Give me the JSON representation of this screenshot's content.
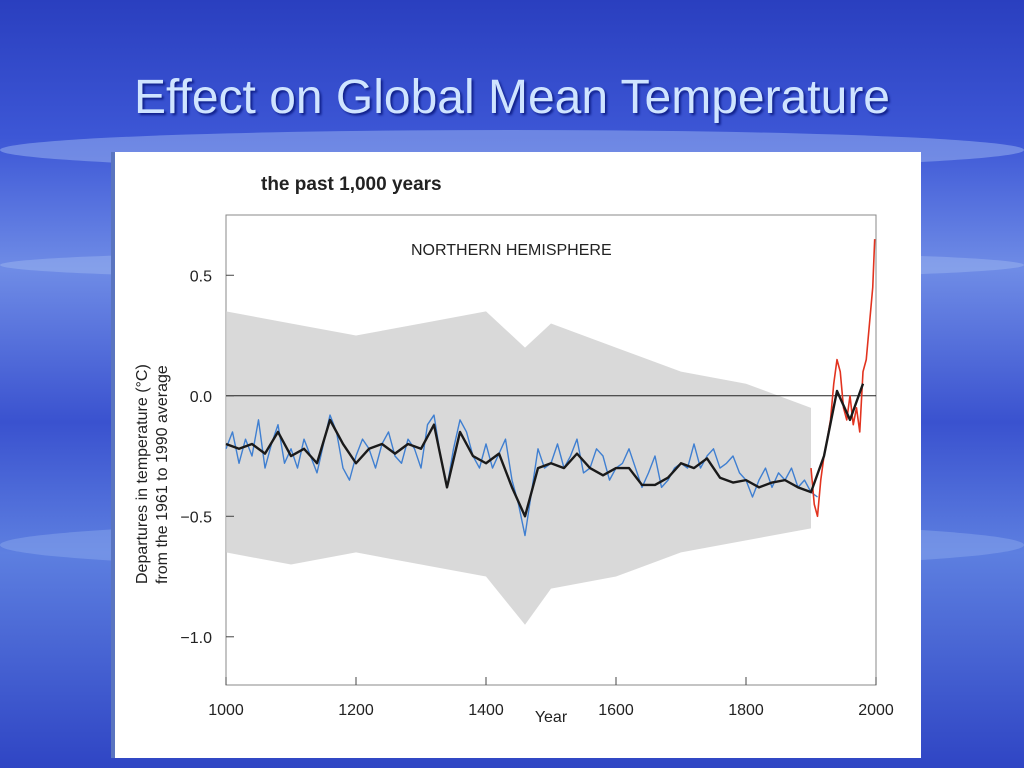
{
  "slide": {
    "title": "Effect on Global Mean Temperature"
  },
  "chart_data": {
    "type": "line",
    "title": "the past 1,000 years",
    "subtitle": "NORTHERN HEMISPHERE",
    "xlabel": "Year",
    "ylabel": "Departures in temperature (°C)",
    "ylabel_line2": "from the 1961 to 1990 average",
    "xlim": [
      1000,
      2000
    ],
    "ylim": [
      -1.2,
      0.75
    ],
    "x_ticks": [
      "1000",
      "1200",
      "1400",
      "1600",
      "1800",
      "2000"
    ],
    "y_ticks": [
      "0.5",
      "0.0",
      "−0.5",
      "−1.0"
    ],
    "reference_line_y": 0.0,
    "series": [
      {
        "color": "#3f7fd1",
        "style": "annual reconstruction",
        "x": [
          1000,
          1010,
          1020,
          1030,
          1040,
          1050,
          1060,
          1070,
          1080,
          1090,
          1100,
          1110,
          1120,
          1130,
          1140,
          1150,
          1160,
          1170,
          1180,
          1190,
          1200,
          1210,
          1220,
          1230,
          1240,
          1250,
          1260,
          1270,
          1280,
          1290,
          1300,
          1310,
          1320,
          1330,
          1340,
          1350,
          1360,
          1370,
          1380,
          1390,
          1400,
          1410,
          1420,
          1430,
          1440,
          1450,
          1460,
          1470,
          1480,
          1490,
          1500,
          1510,
          1520,
          1530,
          1540,
          1550,
          1560,
          1570,
          1580,
          1590,
          1600,
          1610,
          1620,
          1630,
          1640,
          1650,
          1660,
          1670,
          1680,
          1690,
          1700,
          1710,
          1720,
          1730,
          1740,
          1750,
          1760,
          1770,
          1780,
          1790,
          1800,
          1810,
          1820,
          1830,
          1840,
          1850,
          1860,
          1870,
          1880,
          1890,
          1900,
          1910
        ],
        "y": [
          -0.22,
          -0.15,
          -0.28,
          -0.18,
          -0.25,
          -0.1,
          -0.3,
          -0.2,
          -0.12,
          -0.28,
          -0.22,
          -0.3,
          -0.18,
          -0.25,
          -0.32,
          -0.2,
          -0.08,
          -0.15,
          -0.3,
          -0.35,
          -0.25,
          -0.18,
          -0.22,
          -0.3,
          -0.2,
          -0.15,
          -0.25,
          -0.28,
          -0.18,
          -0.22,
          -0.3,
          -0.12,
          -0.08,
          -0.25,
          -0.38,
          -0.22,
          -0.1,
          -0.15,
          -0.25,
          -0.3,
          -0.2,
          -0.3,
          -0.24,
          -0.18,
          -0.35,
          -0.45,
          -0.58,
          -0.4,
          -0.22,
          -0.3,
          -0.28,
          -0.2,
          -0.3,
          -0.25,
          -0.18,
          -0.32,
          -0.3,
          -0.22,
          -0.25,
          -0.35,
          -0.3,
          -0.28,
          -0.22,
          -0.3,
          -0.38,
          -0.32,
          -0.25,
          -0.38,
          -0.35,
          -0.3,
          -0.28,
          -0.3,
          -0.2,
          -0.3,
          -0.25,
          -0.22,
          -0.3,
          -0.28,
          -0.25,
          -0.32,
          -0.35,
          -0.42,
          -0.35,
          -0.3,
          -0.38,
          -0.32,
          -0.35,
          -0.3,
          -0.38,
          -0.35,
          -0.4,
          -0.42
        ]
      },
      {
        "color": "#e2331f",
        "style": "instrumental record",
        "x": [
          1900,
          1905,
          1910,
          1915,
          1920,
          1925,
          1930,
          1935,
          1940,
          1945,
          1950,
          1955,
          1960,
          1965,
          1970,
          1975,
          1980,
          1985,
          1990,
          1995,
          1998
        ],
        "y": [
          -0.3,
          -0.45,
          -0.5,
          -0.35,
          -0.25,
          -0.18,
          -0.1,
          0.05,
          0.15,
          0.1,
          -0.05,
          -0.1,
          0.0,
          -0.12,
          -0.05,
          -0.15,
          0.1,
          0.15,
          0.3,
          0.45,
          0.65
        ]
      },
      {
        "color": "#1a1a1a",
        "style": "smoothed 50-year mean",
        "x": [
          1000,
          1020,
          1040,
          1060,
          1080,
          1100,
          1120,
          1140,
          1160,
          1180,
          1200,
          1220,
          1240,
          1260,
          1280,
          1300,
          1320,
          1340,
          1360,
          1380,
          1400,
          1420,
          1440,
          1460,
          1480,
          1500,
          1520,
          1540,
          1560,
          1580,
          1600,
          1620,
          1640,
          1660,
          1680,
          1700,
          1720,
          1740,
          1760,
          1780,
          1800,
          1820,
          1840,
          1860,
          1880,
          1900,
          1920,
          1940,
          1960,
          1980
        ],
        "y": [
          -0.2,
          -0.22,
          -0.2,
          -0.24,
          -0.15,
          -0.25,
          -0.22,
          -0.28,
          -0.1,
          -0.2,
          -0.28,
          -0.22,
          -0.2,
          -0.24,
          -0.2,
          -0.22,
          -0.12,
          -0.38,
          -0.15,
          -0.25,
          -0.28,
          -0.24,
          -0.38,
          -0.5,
          -0.3,
          -0.28,
          -0.3,
          -0.24,
          -0.3,
          -0.33,
          -0.3,
          -0.3,
          -0.37,
          -0.37,
          -0.34,
          -0.28,
          -0.3,
          -0.26,
          -0.34,
          -0.36,
          -0.35,
          -0.38,
          -0.36,
          -0.35,
          -0.38,
          -0.4,
          -0.25,
          0.02,
          -0.1,
          0.05
        ]
      }
    ],
    "uncertainty_band": {
      "color": "#cfcfcf",
      "x": [
        1000,
        1100,
        1200,
        1300,
        1400,
        1460,
        1500,
        1600,
        1700,
        1800,
        1900
      ],
      "upper": [
        0.35,
        0.3,
        0.25,
        0.3,
        0.35,
        0.2,
        0.3,
        0.2,
        0.1,
        0.05,
        -0.05
      ],
      "lower": [
        -0.65,
        -0.7,
        -0.65,
        -0.7,
        -0.75,
        -0.95,
        -0.8,
        -0.75,
        -0.65,
        -0.6,
        -0.55
      ]
    }
  }
}
